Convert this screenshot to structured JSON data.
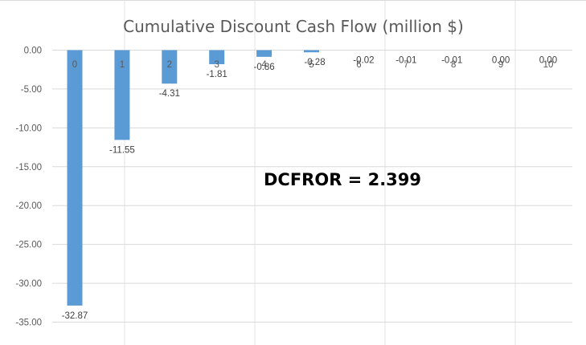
{
  "chart_data": {
    "type": "bar",
    "title": "Cumulative Discount Cash Flow (million $)",
    "xlabel": "",
    "ylabel": "",
    "categories": [
      "0",
      "1",
      "2",
      "3",
      "4",
      "5",
      "6",
      "7",
      "8",
      "9",
      "10"
    ],
    "values": [
      -32.87,
      -11.55,
      -4.31,
      -1.81,
      -0.86,
      -0.28,
      -0.02,
      -0.01,
      -0.01,
      0.0,
      0.0
    ],
    "data_labels": [
      "-32.87",
      "-11.55",
      "-4.31",
      "-1.81",
      "-0.86",
      "-0.28",
      "-0.02",
      "-0.01",
      "-0.01",
      "0.00",
      "0.00"
    ],
    "yticks": [
      "0.00",
      "-5.00",
      "-10.00",
      "-15.00",
      "-20.00",
      "-25.00",
      "-30.00",
      "-35.00"
    ],
    "ylim": [
      -35,
      0
    ],
    "grid": true,
    "legend": "none",
    "bar_color": "#5b9bd5",
    "annotation": "DCFROR = 2.399"
  }
}
